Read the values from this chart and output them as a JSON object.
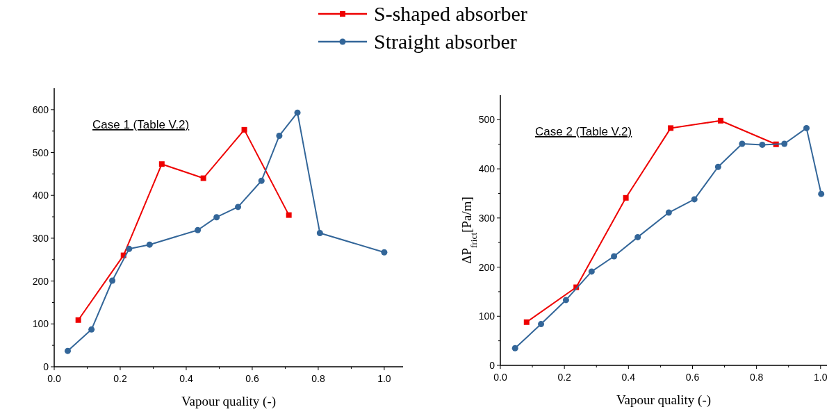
{
  "chart_data": [
    {
      "type": "line",
      "annotations": [
        "Case 1 (Table V.2)"
      ],
      "xlabel": "Vapour quality (-)",
      "legend": "top",
      "line_style": "solid",
      "grid": false,
      "xlim": [
        0,
        1.057
      ],
      "ylim": [
        0,
        650
      ],
      "xticks": [
        {
          "value": 0,
          "label": "0.0"
        },
        {
          "value": 0.1,
          "label": null
        },
        {
          "value": 0.2,
          "label": "0.2"
        },
        {
          "value": 0.3,
          "label": null
        },
        {
          "value": 0.4,
          "label": "0.4"
        },
        {
          "value": 0.5,
          "label": null
        },
        {
          "value": 0.6,
          "label": "0.6"
        },
        {
          "value": 0.7,
          "label": null
        },
        {
          "value": 0.8,
          "label": "0.8"
        },
        {
          "value": 0.9,
          "label": null
        },
        {
          "value": 1,
          "label": "1.0"
        }
      ],
      "yticks": [
        0,
        {
          "value": 50,
          "label": null
        },
        100,
        {
          "value": 150,
          "label": null
        },
        200,
        {
          "value": 250,
          "label": null
        },
        300,
        {
          "value": 350,
          "label": null
        },
        400,
        {
          "value": 450,
          "label": null
        },
        500,
        {
          "value": 550,
          "label": null
        },
        600
      ],
      "series": [
        {
          "name": "S-shaped absorber",
          "color": "#ee0000",
          "marker": "square",
          "x": [
            0.073,
            0.21,
            0.326,
            0.452,
            0.576,
            0.711
          ],
          "values": [
            109,
            260,
            473,
            440,
            553,
            354
          ]
        },
        {
          "name": "Straight absorber",
          "color": "#336699",
          "marker": "circle",
          "x": [
            0.041,
            0.113,
            0.176,
            0.227,
            0.289,
            0.435,
            0.492,
            0.557,
            0.628,
            0.682,
            0.737,
            0.805,
            1.0
          ],
          "values": [
            37,
            87,
            201,
            275,
            285,
            319,
            349,
            373,
            434,
            539,
            593,
            312,
            267
          ]
        }
      ]
    },
    {
      "type": "line",
      "annotations": [
        "Case 2 (Table V.2)"
      ],
      "xlabel": "Vapour quality (-)",
      "ylabel": "ΔP$_{frict}$[Pa/m]",
      "legend": false,
      "line_style": "solid",
      "grid": false,
      "xlim": [
        0,
        1.02
      ],
      "ylim": [
        0,
        550
      ],
      "xticks": [
        {
          "value": 0,
          "label": "0.0"
        },
        {
          "value": 0.1,
          "label": null
        },
        {
          "value": 0.2,
          "label": "0.2"
        },
        {
          "value": 0.3,
          "label": null
        },
        {
          "value": 0.4,
          "label": "0.4"
        },
        {
          "value": 0.5,
          "label": null
        },
        {
          "value": 0.6,
          "label": "0.6"
        },
        {
          "value": 0.7,
          "label": null
        },
        {
          "value": 0.8,
          "label": "0.8"
        },
        {
          "value": 0.9,
          "label": null
        },
        {
          "value": 1,
          "label": "1.0"
        }
      ],
      "yticks": [
        0,
        {
          "value": 50,
          "label": null
        },
        100,
        {
          "value": 150,
          "label": null
        },
        200,
        {
          "value": 250,
          "label": null
        },
        300,
        {
          "value": 350,
          "label": null
        },
        400,
        {
          "value": 450,
          "label": null
        },
        500
      ],
      "series": [
        {
          "color": "#ee0000",
          "marker": "square",
          "x": [
            0.082,
            0.237,
            0.392,
            0.532,
            0.688,
            0.861
          ],
          "values": [
            88,
            159,
            341,
            483,
            498,
            450
          ]
        },
        {
          "color": "#336699",
          "marker": "circle",
          "x": [
            0.046,
            0.127,
            0.205,
            0.285,
            0.355,
            0.429,
            0.526,
            0.606,
            0.68,
            0.755,
            0.818,
            0.887,
            0.956,
            1.002
          ],
          "values": [
            35,
            84,
            133,
            191,
            222,
            261,
            311,
            338,
            404,
            451,
            449,
            451,
            483,
            349
          ]
        }
      ]
    }
  ]
}
